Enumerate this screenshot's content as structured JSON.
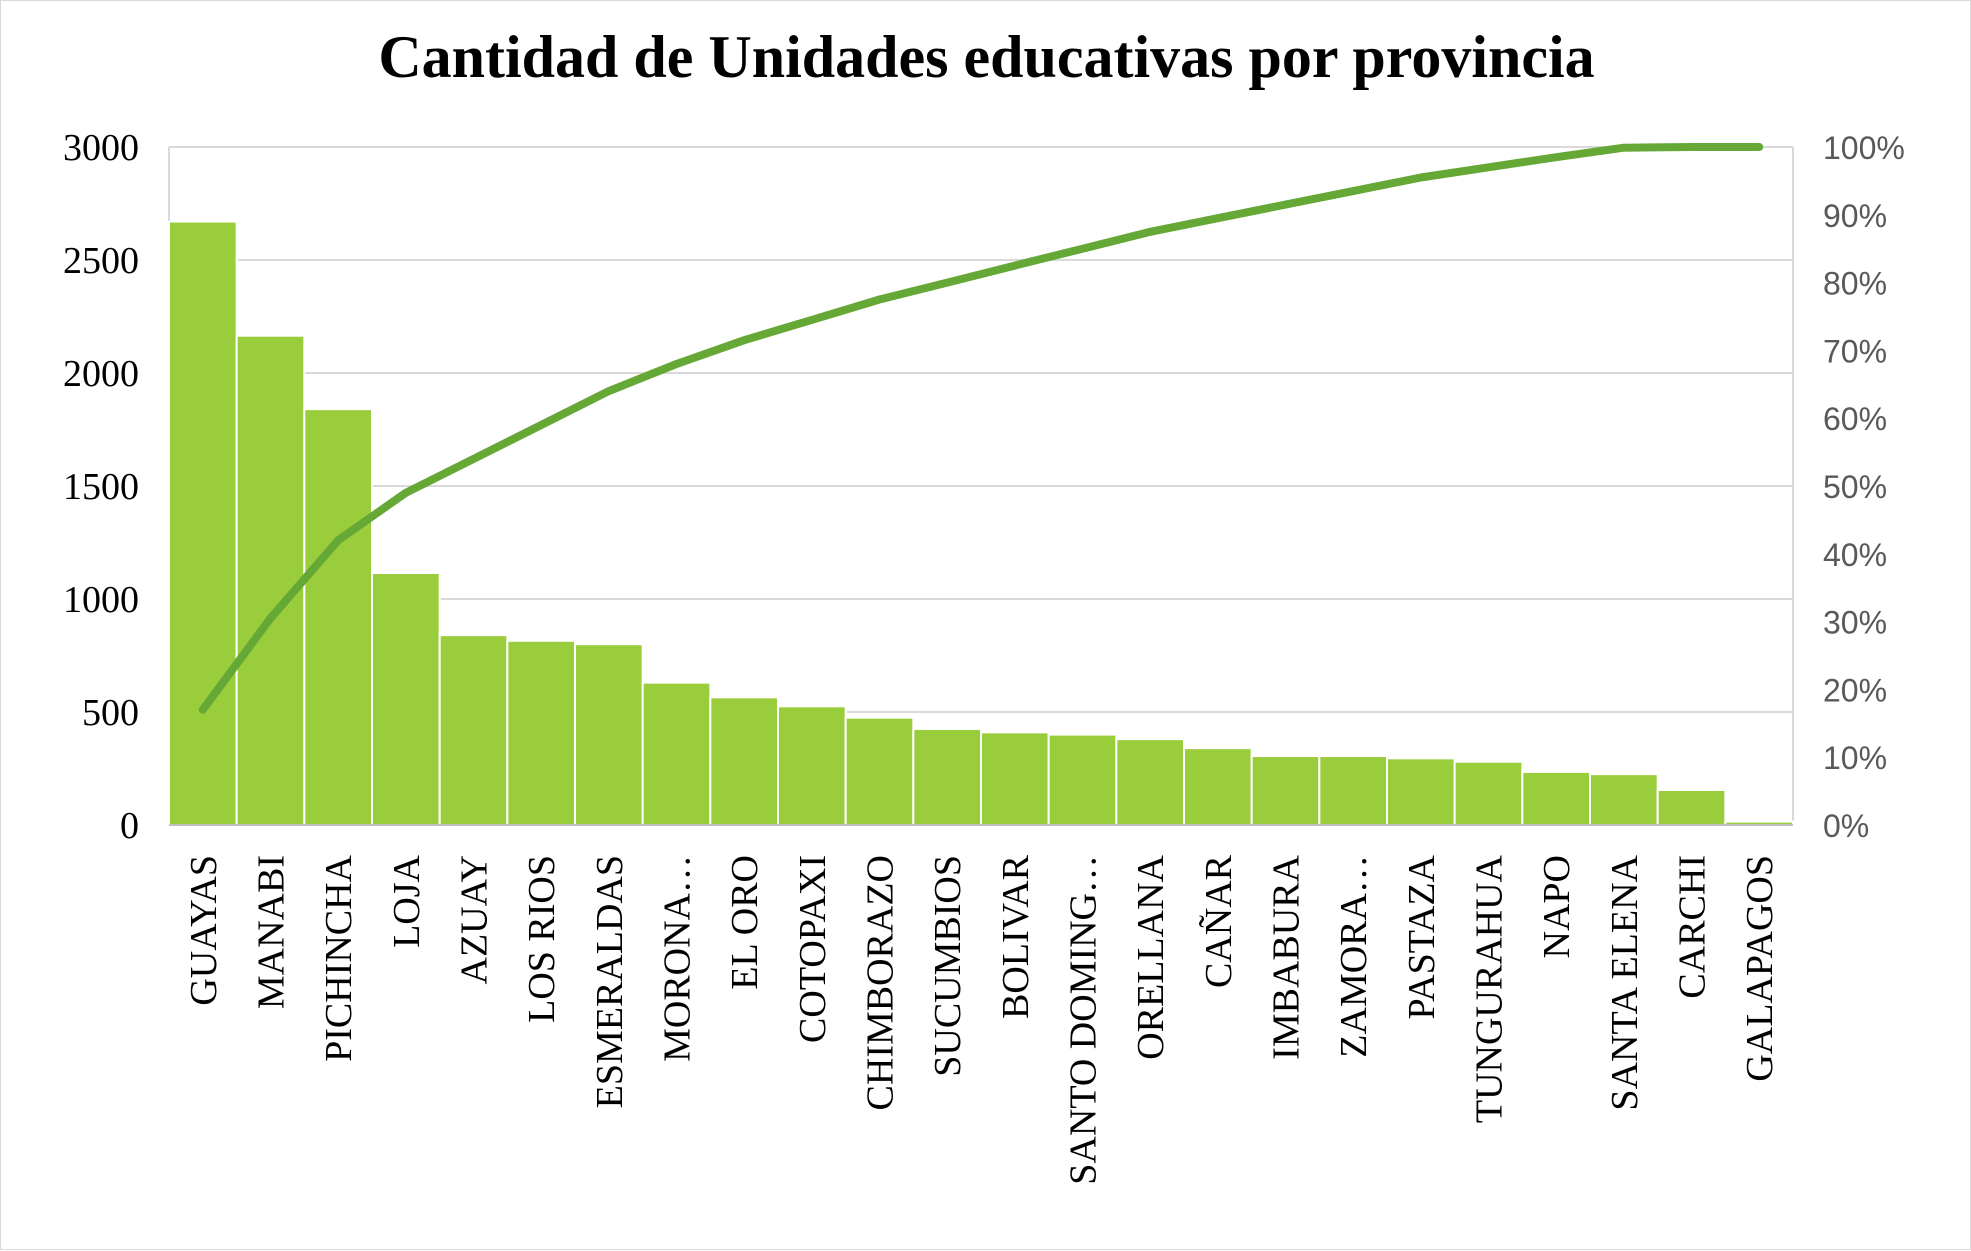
{
  "chart_data": {
    "type": "bar",
    "title": "Cantidad de Unidades educativas por provincia",
    "categories": [
      "GUAYAS",
      "MANABI",
      "PICHINCHA",
      "LOJA",
      "AZUAY",
      "LOS RIOS",
      "ESMERALDAS",
      "MORONA…",
      "EL ORO",
      "COTOPAXI",
      "CHIMBORAZO",
      "SUCUMBIOS",
      "BOLIVAR",
      "SANTO DOMING…",
      "ORELLANA",
      "CAÑAR",
      "IMBABURA",
      "ZAMORA…",
      "PASTAZA",
      "TUNGURAHUA",
      "NAPO",
      "SANTA ELENA",
      "CARCHI",
      "GALAPAGOS"
    ],
    "values": [
      2670,
      2165,
      1840,
      1115,
      840,
      815,
      800,
      630,
      565,
      525,
      475,
      425,
      410,
      400,
      380,
      340,
      305,
      305,
      295,
      280,
      235,
      225,
      155,
      15
    ],
    "cumulative_percent": [
      17,
      30.5,
      42,
      49,
      54,
      59,
      64,
      68,
      71.5,
      74.5,
      77.5,
      80,
      82.5,
      85,
      87.5,
      89.5,
      91.5,
      93.5,
      95.5,
      97,
      98.5,
      99.9,
      100,
      100
    ],
    "ylim": [
      0,
      3000
    ],
    "y_ticks": [
      "0",
      "500",
      "1000",
      "1500",
      "2000",
      "2500",
      "3000"
    ],
    "y2lim": [
      0,
      1
    ],
    "y2_ticks": [
      "0%",
      "10%",
      "20%",
      "30%",
      "40%",
      "50%",
      "60%",
      "70%",
      "80%",
      "90%",
      "100%"
    ],
    "grid": true,
    "legend": "none",
    "colors": {
      "bar": "#9acd3c",
      "line": "#65a836",
      "grid": "#d9d9d9"
    }
  }
}
